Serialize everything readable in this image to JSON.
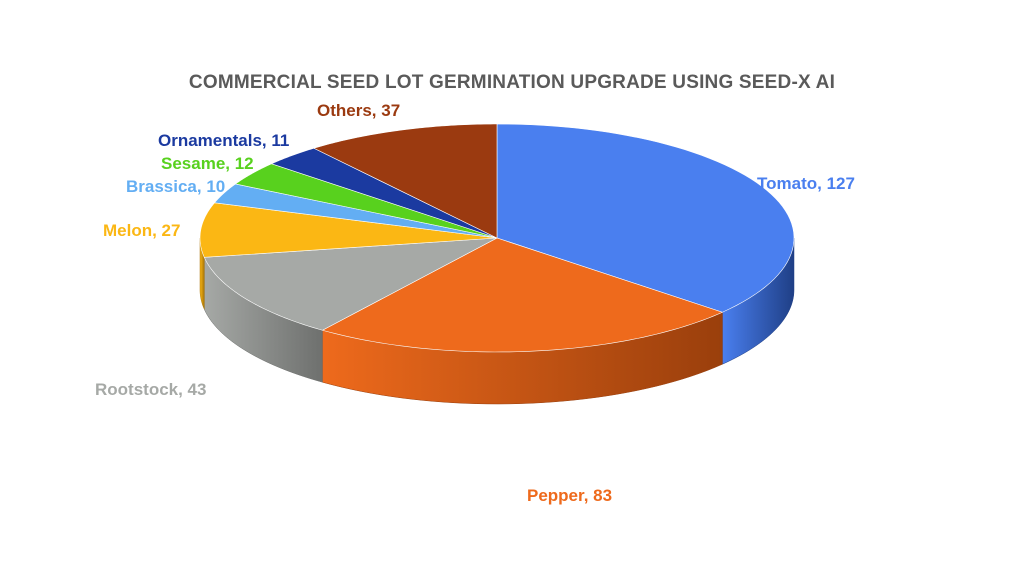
{
  "chart_data": {
    "type": "pie",
    "title": "COMMERCIAL SEED LOT GERMINATION UPGRADE USING SEED-X AI",
    "slices": [
      {
        "label": "Tomato",
        "value": 127,
        "display": "Tomato, 127",
        "color": "#4a7fef",
        "side": "#1f3f86",
        "text_color": "#4a7fef"
      },
      {
        "label": "Pepper",
        "value": 83,
        "display": "Pepper, 83",
        "color": "#ee6a1c",
        "side": "#9a3f0c",
        "text_color": "#ee6a1c"
      },
      {
        "label": "Rootstock",
        "value": 43,
        "display": "Rootstock, 43",
        "color": "#a6a9a6",
        "side": "#6e706e",
        "text_color": "#a6a9a6"
      },
      {
        "label": "Melon",
        "value": 27,
        "display": "Melon, 27",
        "color": "#fbb714",
        "side": "#a87508",
        "text_color": "#fbb714"
      },
      {
        "label": "Brassica",
        "value": 10,
        "display": "Brassica, 10",
        "color": "#63aef3",
        "side": "#3a72a8",
        "text_color": "#63aef3"
      },
      {
        "label": "Sesame",
        "value": 12,
        "display": "Sesame, 12",
        "color": "#58d11e",
        "side": "#378812",
        "text_color": "#58d11e"
      },
      {
        "label": "Ornamentals",
        "value": 11,
        "display": "Ornamentals, 11",
        "color": "#1b3aa0",
        "side": "#0f2261",
        "text_color": "#1b3aa0"
      },
      {
        "label": "Others",
        "value": 37,
        "display": "Others, 37",
        "color": "#9b3a10",
        "side": "#5e220a",
        "text_color": "#9b3a10"
      }
    ],
    "start": "12 o'clock, clockwise",
    "style": "3D pie",
    "legend": "none"
  }
}
